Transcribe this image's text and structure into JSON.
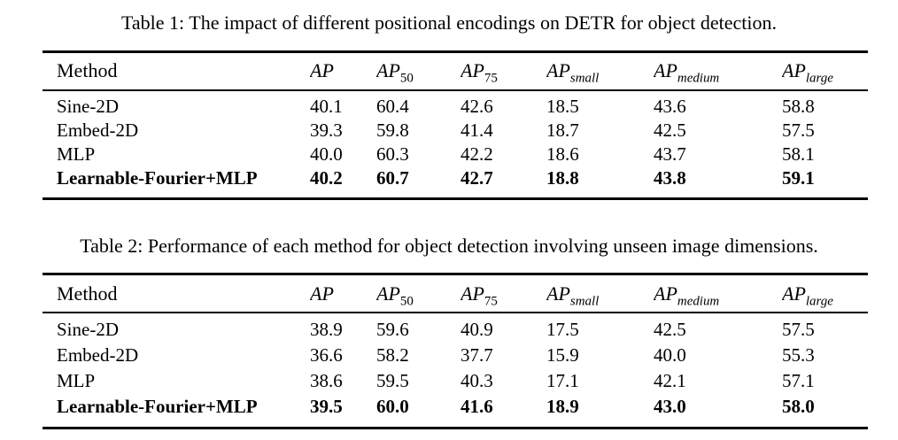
{
  "page": {
    "background_color": "#ffffff",
    "text_color": "#000000",
    "rule_color": "#000000"
  },
  "tables": [
    {
      "caption": "Table 1: The impact of different positional encodings on DETR for object detection.",
      "columns": [
        {
          "base": "Method",
          "italic": false,
          "sub": "",
          "sub_italic": false
        },
        {
          "base": "AP",
          "italic": true,
          "sub": "",
          "sub_italic": false
        },
        {
          "base": "AP",
          "italic": true,
          "sub": "50",
          "sub_italic": false
        },
        {
          "base": "AP",
          "italic": true,
          "sub": "75",
          "sub_italic": false
        },
        {
          "base": "AP",
          "italic": true,
          "sub": "small",
          "sub_italic": true
        },
        {
          "base": "AP",
          "italic": true,
          "sub": "medium",
          "sub_italic": true
        },
        {
          "base": "AP",
          "italic": true,
          "sub": "large",
          "sub_italic": true
        }
      ],
      "rows": [
        {
          "method": "Sine-2D",
          "values": [
            "40.1",
            "60.4",
            "42.6",
            "18.5",
            "43.6",
            "58.8"
          ],
          "bold": false
        },
        {
          "method": "Embed-2D",
          "values": [
            "39.3",
            "59.8",
            "41.4",
            "18.7",
            "42.5",
            "57.5"
          ],
          "bold": false
        },
        {
          "method": "MLP",
          "values": [
            "40.0",
            "60.3",
            "42.2",
            "18.6",
            "43.7",
            "58.1"
          ],
          "bold": false
        },
        {
          "method": "Learnable-Fourier+MLP",
          "values": [
            "40.2",
            "60.7",
            "42.7",
            "18.8",
            "43.8",
            "59.1"
          ],
          "bold": true
        }
      ]
    },
    {
      "caption": "Table 2: Performance of each method for object detection involving unseen image dimensions.",
      "columns": [
        {
          "base": "Method",
          "italic": false,
          "sub": "",
          "sub_italic": false
        },
        {
          "base": "AP",
          "italic": true,
          "sub": "",
          "sub_italic": false
        },
        {
          "base": "AP",
          "italic": true,
          "sub": "50",
          "sub_italic": false
        },
        {
          "base": "AP",
          "italic": true,
          "sub": "75",
          "sub_italic": false
        },
        {
          "base": "AP",
          "italic": true,
          "sub": "small",
          "sub_italic": true
        },
        {
          "base": "AP",
          "italic": true,
          "sub": "medium",
          "sub_italic": true
        },
        {
          "base": "AP",
          "italic": true,
          "sub": "large",
          "sub_italic": true
        }
      ],
      "rows": [
        {
          "method": "Sine-2D",
          "values": [
            "38.9",
            "59.6",
            "40.9",
            "17.5",
            "42.5",
            "57.5"
          ],
          "bold": false
        },
        {
          "method": "Embed-2D",
          "values": [
            "36.6",
            "58.2",
            "37.7",
            "15.9",
            "40.0",
            "55.3"
          ],
          "bold": false
        },
        {
          "method": "MLP",
          "values": [
            "38.6",
            "59.5",
            "40.3",
            "17.1",
            "42.1",
            "57.1"
          ],
          "bold": false
        },
        {
          "method": "Learnable-Fourier+MLP",
          "values": [
            "39.5",
            "60.0",
            "41.6",
            "18.9",
            "43.0",
            "58.0"
          ],
          "bold": true
        }
      ]
    }
  ]
}
